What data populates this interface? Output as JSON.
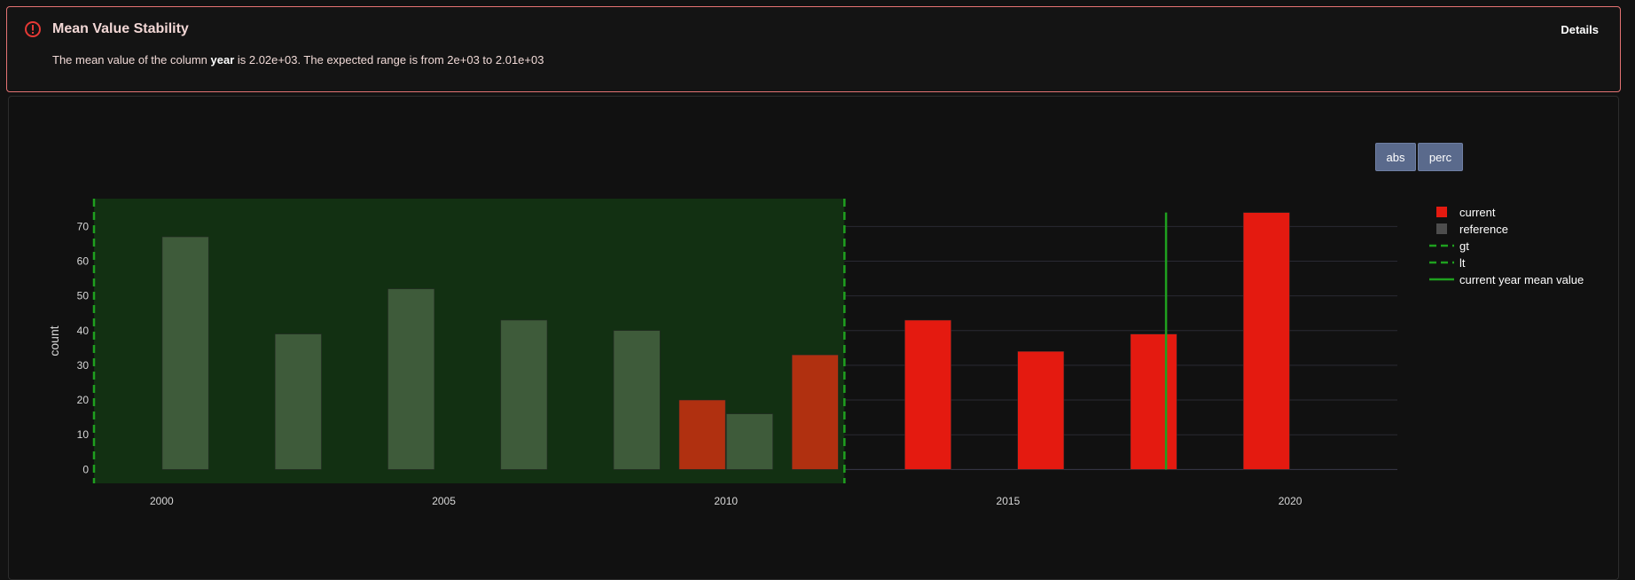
{
  "alert": {
    "title": "Mean Value Stability",
    "message_pre": "The mean value of the column ",
    "column": "year",
    "message_post": " is 2.02e+03. The expected range is from 2e+03 to 2.01e+03",
    "details_label": "Details",
    "icon": "exclamation-circle-icon",
    "color": "#e53935"
  },
  "buttons": {
    "abs_label": "abs",
    "perc_label": "perc"
  },
  "chart_data": {
    "type": "bar",
    "ylabel": "count",
    "xlim": [
      1998.8,
      2021.9
    ],
    "ylim": [
      -4,
      78
    ],
    "x_ticks": [
      2000,
      2005,
      2010,
      2015,
      2020
    ],
    "y_ticks": [
      0,
      10,
      20,
      30,
      40,
      50,
      60,
      70
    ],
    "series": [
      {
        "name": "current",
        "color": "#e41a10",
        "x": [
          2010,
          2012,
          2014,
          2016,
          2018,
          2020
        ],
        "values": [
          20,
          33,
          43,
          34,
          39,
          74
        ]
      },
      {
        "name": "reference",
        "color": "#4d4d4d",
        "x": [
          2000,
          2002,
          2004,
          2006,
          2008,
          2010
        ],
        "values": [
          67,
          39,
          52,
          43,
          40,
          16
        ]
      }
    ],
    "bar_offset_years": 0.42,
    "bar_width_years": 0.82,
    "accepted_range": {
      "from": 1998.8,
      "to": 2012.1,
      "color": "#1f6b1f"
    },
    "lines": [
      {
        "name": "gt",
        "x": 1998.8,
        "style": "dash",
        "color": "#1fa01f"
      },
      {
        "name": "lt",
        "x": 2012.1,
        "style": "dash",
        "color": "#1fa01f"
      },
      {
        "name": "current year mean value",
        "x": 2017.8,
        "style": "solid",
        "color": "#1fa01f"
      }
    ],
    "legend": {
      "position": "right",
      "items": [
        {
          "label": "current",
          "symbol": "square",
          "color": "#e41a10"
        },
        {
          "label": "reference",
          "symbol": "square",
          "color": "#4d4d4d"
        },
        {
          "label": "gt",
          "symbol": "dash",
          "color": "#1fa01f"
        },
        {
          "label": "lt",
          "symbol": "dash",
          "color": "#1fa01f"
        },
        {
          "label": "current year mean value",
          "symbol": "line",
          "color": "#1fa01f"
        }
      ]
    }
  }
}
